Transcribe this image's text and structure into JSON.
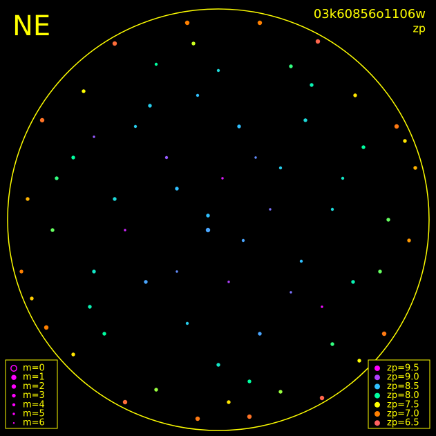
{
  "header": {
    "direction": "NE",
    "frame": "03k60856o1106w",
    "metric": "zp"
  },
  "legend_m": [
    {
      "label": "m=0",
      "m": 0
    },
    {
      "label": "m=1",
      "m": 1
    },
    {
      "label": "m=2",
      "m": 2
    },
    {
      "label": "m=3",
      "m": 3
    },
    {
      "label": "m=4",
      "m": 4
    },
    {
      "label": "m=5",
      "m": 5
    },
    {
      "label": "m=6",
      "m": 6
    }
  ],
  "legend_zp": [
    {
      "label": "zp=9.5",
      "zp": 9.5,
      "color": "#ff00ff"
    },
    {
      "label": "zp=9.0",
      "zp": 9.0,
      "color": "#b040ff"
    },
    {
      "label": "zp=8.5",
      "zp": 8.5,
      "color": "#30c0ff"
    },
    {
      "label": "zp=8.0",
      "zp": 8.0,
      "color": "#00ffa0"
    },
    {
      "label": "zp=7.5",
      "zp": 7.5,
      "color": "#ffff00"
    },
    {
      "label": "zp=7.0",
      "zp": 7.0,
      "color": "#ff8000"
    },
    {
      "label": "zp=6.5",
      "zp": 6.5,
      "color": "#ff6060"
    }
  ],
  "stars": [
    [
      -0.05,
      0.02,
      8.5,
      3
    ],
    [
      0.12,
      -0.1,
      8.6,
      4
    ],
    [
      -0.2,
      0.15,
      8.5,
      3
    ],
    [
      0.3,
      0.25,
      8.4,
      4
    ],
    [
      -0.35,
      -0.3,
      8.6,
      3
    ],
    [
      0.4,
      -0.2,
      8.5,
      4
    ],
    [
      -0.5,
      0.1,
      8.3,
      3
    ],
    [
      0.55,
      0.05,
      8.3,
      4
    ],
    [
      0.1,
      0.45,
      8.5,
      3
    ],
    [
      -0.15,
      -0.5,
      8.4,
      4
    ],
    [
      0.2,
      -0.55,
      8.6,
      3
    ],
    [
      -0.4,
      0.45,
      8.4,
      4
    ],
    [
      0.42,
      0.48,
      8.3,
      3
    ],
    [
      -0.25,
      0.3,
      8.9,
      4
    ],
    [
      0.05,
      -0.3,
      9.0,
      5
    ],
    [
      0.25,
      0.05,
      8.8,
      5
    ],
    [
      -0.1,
      0.6,
      8.5,
      4
    ],
    [
      -0.6,
      -0.25,
      8.2,
      3
    ],
    [
      0.65,
      -0.3,
      8.1,
      3
    ],
    [
      0.0,
      -0.7,
      8.2,
      3
    ],
    [
      0.0,
      0.72,
      8.3,
      4
    ],
    [
      -0.7,
      0.3,
      8.0,
      3
    ],
    [
      0.7,
      0.35,
      8.0,
      3
    ],
    [
      -0.55,
      -0.55,
      8.0,
      3
    ],
    [
      0.55,
      -0.6,
      7.9,
      3
    ],
    [
      -0.3,
      0.75,
      8.0,
      4
    ],
    [
      0.35,
      0.74,
      7.9,
      3
    ],
    [
      -0.8,
      -0.05,
      7.8,
      3
    ],
    [
      0.82,
      0.0,
      7.8,
      3
    ],
    [
      -0.3,
      -0.82,
      7.7,
      3
    ],
    [
      0.3,
      -0.83,
      7.7,
      3
    ],
    [
      -0.65,
      0.62,
      7.5,
      3
    ],
    [
      0.66,
      0.6,
      7.4,
      3
    ],
    [
      -0.7,
      -0.65,
      7.4,
      3
    ],
    [
      0.68,
      -0.68,
      7.5,
      3
    ],
    [
      -0.92,
      0.1,
      7.2,
      3
    ],
    [
      0.92,
      -0.1,
      7.1,
      3
    ],
    [
      -0.15,
      0.95,
      7.0,
      2
    ],
    [
      0.2,
      0.95,
      7.0,
      2
    ],
    [
      -0.1,
      -0.96,
      6.9,
      2
    ],
    [
      0.15,
      -0.95,
      6.8,
      2
    ],
    [
      -0.85,
      0.48,
      6.8,
      2
    ],
    [
      0.86,
      0.45,
      6.9,
      2
    ],
    [
      -0.83,
      -0.52,
      7.0,
      2
    ],
    [
      0.8,
      -0.55,
      6.9,
      2
    ],
    [
      -0.5,
      0.85,
      6.7,
      2
    ],
    [
      0.48,
      0.86,
      6.6,
      2
    ],
    [
      -0.45,
      -0.88,
      6.7,
      2
    ],
    [
      0.5,
      -0.86,
      6.6,
      2
    ],
    [
      -0.95,
      -0.25,
      7.0,
      3
    ],
    [
      0.95,
      0.25,
      7.2,
      3
    ],
    [
      0.02,
      0.2,
      9.3,
      5
    ],
    [
      -0.45,
      -0.05,
      9.2,
      5
    ],
    [
      0.5,
      -0.42,
      9.4,
      5
    ],
    [
      -0.2,
      -0.25,
      8.7,
      5
    ],
    [
      0.18,
      0.3,
      8.7,
      5
    ],
    [
      -0.6,
      0.4,
      8.9,
      5
    ],
    [
      0.35,
      -0.35,
      8.8,
      5
    ],
    [
      -0.05,
      -0.05,
      8.6,
      2
    ],
    [
      0.6,
      0.2,
      8.2,
      4
    ],
    [
      -0.33,
      0.55,
      8.4,
      3
    ],
    [
      0.45,
      0.65,
      8.1,
      3
    ],
    [
      -0.62,
      -0.42,
      8.1,
      3
    ],
    [
      0.15,
      -0.78,
      8.0,
      3
    ],
    [
      -0.78,
      0.2,
      7.9,
      3
    ],
    [
      0.78,
      -0.25,
      7.8,
      3
    ],
    [
      -0.12,
      0.85,
      7.6,
      3
    ],
    [
      0.05,
      -0.88,
      7.4,
      3
    ],
    [
      -0.9,
      -0.38,
      7.3,
      3
    ],
    [
      0.9,
      0.38,
      7.4,
      3
    ]
  ]
}
